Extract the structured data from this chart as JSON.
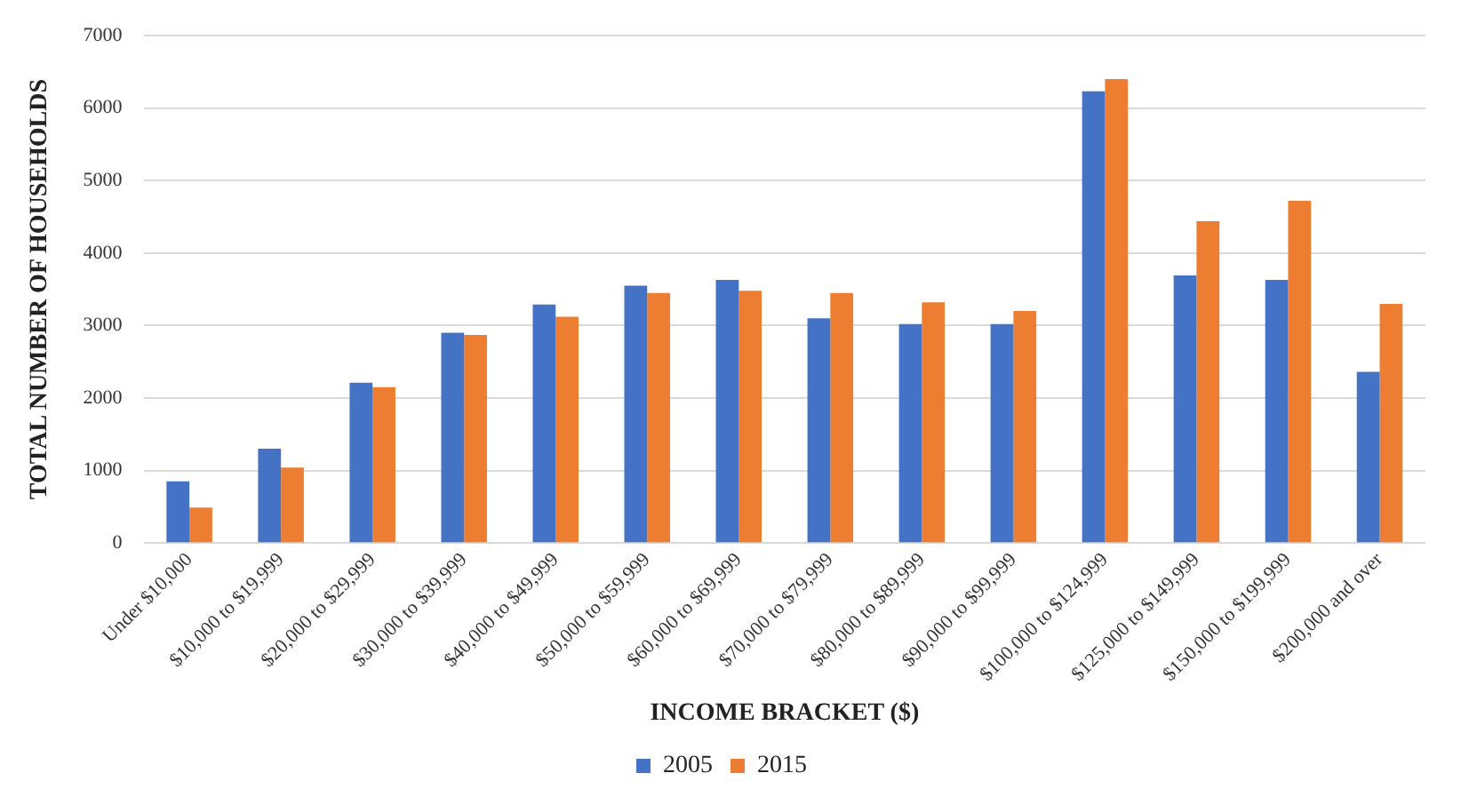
{
  "chart_data": {
    "type": "bar",
    "xlabel": "INCOME BRACKET ($)",
    "ylabel": "TOTAL NUMBER OF HOUSEHOLDS",
    "categories": [
      "Under $10,000",
      "$10,000 to $19,999",
      "$20,000 to $29,999",
      "$30,000 to $39,999",
      "$40,000 to $49,999",
      "$50,000 to $59,999",
      "$60,000 to $69,999",
      "$70,000 to $79,999",
      "$80,000 to $89,999",
      "$90,000 to $99,999",
      "$100,000 to $124,999",
      "$125,000 to $149,999",
      "$150,000 to $199,999",
      "$200,000 and over"
    ],
    "series": [
      {
        "name": "2005",
        "color": "#4472c4",
        "values": [
          850,
          1300,
          2210,
          2900,
          3290,
          3550,
          3630,
          3100,
          3020,
          3020,
          6230,
          3690,
          3630,
          2360
        ]
      },
      {
        "name": "2015",
        "color": "#ed7d31",
        "values": [
          490,
          1040,
          2150,
          2870,
          3120,
          3450,
          3480,
          3450,
          3320,
          3200,
          6400,
          4440,
          4720,
          3300
        ]
      }
    ],
    "ylim": [
      0,
      7000
    ],
    "yticks": [
      0,
      1000,
      2000,
      3000,
      4000,
      5000,
      6000,
      7000
    ],
    "grid": "y",
    "legend": "bottom"
  }
}
